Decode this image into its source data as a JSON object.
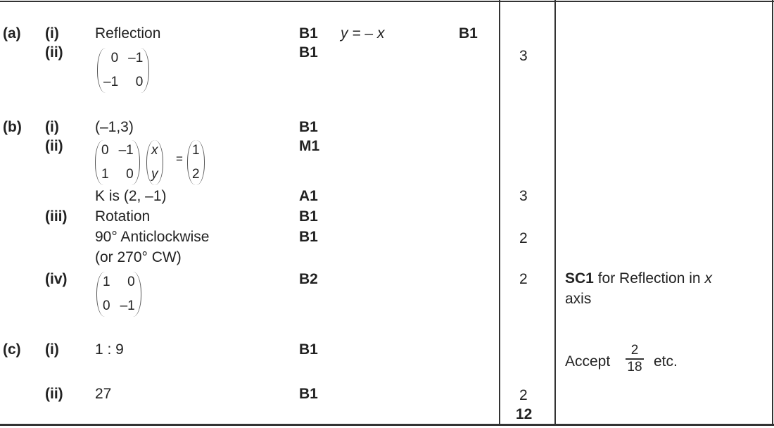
{
  "part_a": {
    "label": "(a)",
    "i": {
      "label": "(i)",
      "answer": "Reflection",
      "mark": "B1",
      "note": "y = – x",
      "note_mark": "B1"
    },
    "ii": {
      "label": "(ii)",
      "matrix": [
        "0",
        "–1",
        "–1",
        "0"
      ],
      "mark": "B1"
    },
    "total": "3"
  },
  "part_b": {
    "label": "(b)",
    "i": {
      "label": "(i)",
      "answer": "(–1,3)",
      "mark": "B1"
    },
    "ii": {
      "label": "(ii)",
      "matrix": [
        "0",
        "–1",
        "1",
        "0"
      ],
      "vector": [
        "x",
        "y"
      ],
      "equals": "=",
      "result": [
        "1",
        "2"
      ],
      "mark": "M1",
      "k_line": "K is (2, –1)",
      "k_mark": "A1",
      "total": "3"
    },
    "iii": {
      "label": "(iii)",
      "line1": "Rotation",
      "mark1": "B1",
      "line2": "90° Anticlockwise",
      "mark2": "B1",
      "line3": "(or 270° CW)",
      "total": "2"
    },
    "iv": {
      "label": "(iv)",
      "matrix": [
        "1",
        "0",
        "0",
        "–1"
      ],
      "mark": "B2",
      "total": "2",
      "comment_bold": "SC1",
      "comment_rest": " for Reflection in ",
      "comment_var": "x",
      "comment_line2": "axis"
    }
  },
  "part_c": {
    "label": "(c)",
    "i": {
      "label": "(i)",
      "answer": "1 : 9",
      "mark": "B1",
      "comment_pre": "Accept",
      "frac_num": "2",
      "frac_den": "18",
      "comment_post": "etc."
    },
    "ii": {
      "label": "(ii)",
      "answer": "27",
      "mark": "B1",
      "total": "2"
    }
  },
  "grand_total": "12"
}
